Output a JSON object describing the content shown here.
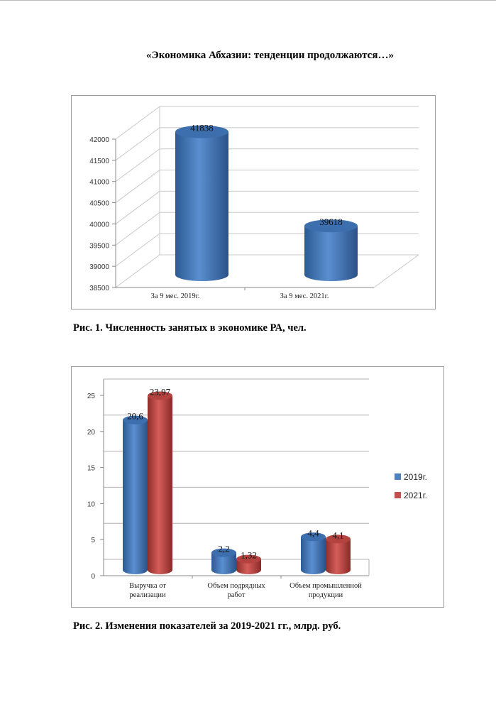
{
  "page": {
    "title": "«Экономика Абхазии: тенденции продолжаются…»",
    "caption1": "Рис. 1. Численность занятых в экономике РА, чел.",
    "caption2": "Рис. 2. Изменения показателей за 2019-2021 гг., млрд. руб."
  },
  "chart_data": [
    {
      "type": "bar",
      "style": "3d-cylinder",
      "categories": [
        "За 9 мес. 2019г.",
        "За 9 мес. 2021г."
      ],
      "values": [
        41838,
        39618
      ],
      "data_labels": [
        "41838",
        "39618"
      ],
      "ylim": [
        38500,
        42000
      ],
      "yticks": [
        "38500",
        "39000",
        "39500",
        "40000",
        "40500",
        "41000",
        "41500",
        "42000"
      ],
      "grid": true,
      "color": "#4f81bd"
    },
    {
      "type": "bar",
      "style": "3d-cylinder",
      "categories": [
        [
          "Выручка от",
          "реализации"
        ],
        [
          "Объем подрядных",
          "работ"
        ],
        [
          "Объем промышленной",
          "продукции"
        ]
      ],
      "series": [
        {
          "name": "2019г.",
          "values": [
            20.6,
            2.2,
            4.4
          ],
          "labels": [
            "20,6",
            "2,2",
            "4,4"
          ],
          "color": "#4f81bd"
        },
        {
          "name": "2021г.",
          "values": [
            23.97,
            1.32,
            4.1
          ],
          "labels": [
            "23,97",
            "1,32",
            "4,1"
          ],
          "color": "#c0504d"
        }
      ],
      "ylim": [
        0,
        25
      ],
      "yticks": [
        "0",
        "5",
        "10",
        "15",
        "20",
        "25"
      ],
      "grid": true,
      "legend": "right"
    }
  ]
}
